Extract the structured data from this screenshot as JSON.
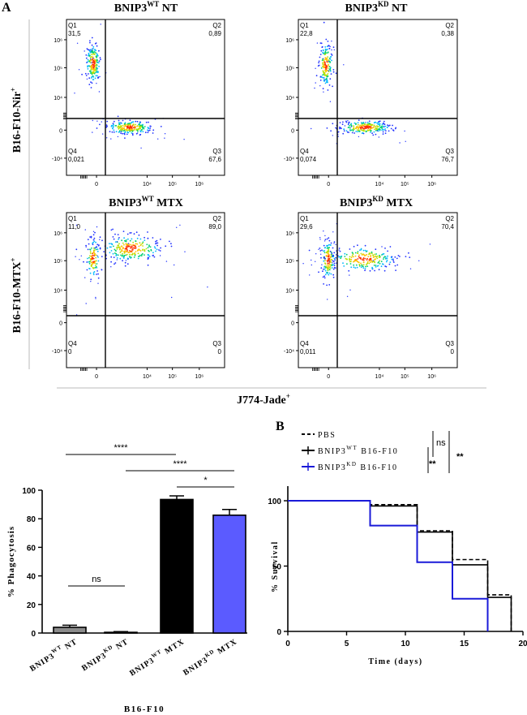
{
  "panel_a": {
    "letter": "A",
    "row_labels": [
      {
        "text": "B16-F10-Nir",
        "sup": "+"
      },
      {
        "text": "B16-F10-MTX",
        "sup": "+"
      }
    ],
    "x_axis_label": {
      "text": "J774-Jade",
      "sup": "+"
    },
    "plots": [
      {
        "title_a": "BNIP3",
        "title_sup": "WT",
        "title_b": " NT",
        "quadrants": {
          "Q1": "31,5",
          "Q2": "0,89",
          "Q3": "67,6",
          "Q4": "0,021"
        }
      },
      {
        "title_a": "BNIP3",
        "title_sup": "KD",
        "title_b": " NT",
        "quadrants": {
          "Q1": "22,8",
          "Q2": "0,38",
          "Q3": "76,7",
          "Q4": "0,074"
        }
      },
      {
        "title_a": "BNIP3",
        "title_sup": "WT",
        "title_b": " MTX",
        "quadrants": {
          "Q1": "11,0",
          "Q2": "89,0",
          "Q3": "0",
          "Q4": "0"
        }
      },
      {
        "title_a": "BNIP3",
        "title_sup": "KD",
        "title_b": " MTX",
        "quadrants": {
          "Q1": "29,6",
          "Q2": "70,4",
          "Q3": "0",
          "Q4": "0,011"
        }
      }
    ],
    "quadrant_names": [
      "Q1",
      "Q2",
      "Q3",
      "Q4"
    ],
    "y_ticks": [
      "10⁶",
      "10⁵",
      "10⁴",
      "0",
      "-10⁴"
    ],
    "x_ticks": [
      "0",
      "10⁴",
      "10⁵",
      "10⁶"
    ]
  },
  "chart_data": [
    {
      "type": "bar",
      "xlabel": "B16-F10",
      "ylabel": "% Phagocytosis",
      "ylim": [
        0,
        100
      ],
      "yticks": [
        "0",
        "20",
        "40",
        "60",
        "80",
        "100"
      ],
      "categories": [
        {
          "a": "BNIP3",
          "sup": "WT",
          "b": " NT"
        },
        {
          "a": "BNIP3",
          "sup": "KD",
          "b": " NT"
        },
        {
          "a": "BNIP3",
          "sup": "WT",
          "b": " MTX"
        },
        {
          "a": "BNIP3",
          "sup": "KD",
          "b": " MTX"
        }
      ],
      "values": [
        4,
        0.5,
        93.5,
        82.5
      ],
      "errors": [
        1.5,
        0.5,
        2.5,
        4
      ],
      "colors": [
        "#8c8c8c",
        "#8c8c8c",
        "#000000",
        "#5b5bff"
      ],
      "significance": [
        {
          "from": 0,
          "to": 1,
          "label": "ns"
        },
        {
          "from": 0,
          "to": 2,
          "label": "****"
        },
        {
          "from": 1,
          "to": 3,
          "label": "****"
        },
        {
          "from": 2,
          "to": 3,
          "label": "*"
        }
      ]
    },
    {
      "type": "line",
      "panel_letter": "B",
      "xlabel": "Time (days)",
      "ylabel": "% Survival",
      "xlim": [
        0,
        20
      ],
      "ylim": [
        0,
        100
      ],
      "xticks": [
        "0",
        "5",
        "10",
        "15",
        "20"
      ],
      "yticks": [
        "0",
        "50",
        "100"
      ],
      "series": [
        {
          "name": "PBS",
          "color": "#000000",
          "dash": true,
          "steps": [
            [
              0,
              100
            ],
            [
              7,
              100
            ],
            [
              7,
              97
            ],
            [
              11,
              97
            ],
            [
              11,
              77
            ],
            [
              14,
              77
            ],
            [
              14,
              55
            ],
            [
              17,
              55
            ],
            [
              17,
              28
            ],
            [
              19,
              28
            ],
            [
              19,
              0
            ]
          ]
        },
        {
          "name_a": "BNIP3",
          "name_sup": "WT",
          "name_b": " B16-F10",
          "color": "#000000",
          "dash": false,
          "steps": [
            [
              0,
              100
            ],
            [
              7,
              100
            ],
            [
              7,
              96
            ],
            [
              11,
              96
            ],
            [
              11,
              76
            ],
            [
              14,
              76
            ],
            [
              14,
              51
            ],
            [
              17,
              51
            ],
            [
              17,
              26
            ],
            [
              19,
              26
            ],
            [
              19,
              0
            ]
          ]
        },
        {
          "name_a": "BNIP3",
          "name_sup": "KD",
          "name_b": " B16-F10",
          "color": "#1a1ad8",
          "dash": false,
          "steps": [
            [
              0,
              100
            ],
            [
              7,
              100
            ],
            [
              7,
              81
            ],
            [
              11,
              81
            ],
            [
              11,
              53
            ],
            [
              14,
              53
            ],
            [
              14,
              25
            ],
            [
              17,
              25
            ],
            [
              17,
              0
            ]
          ]
        }
      ],
      "significance": [
        {
          "label": "ns"
        },
        {
          "label": "**"
        },
        {
          "label": "**"
        }
      ]
    }
  ]
}
